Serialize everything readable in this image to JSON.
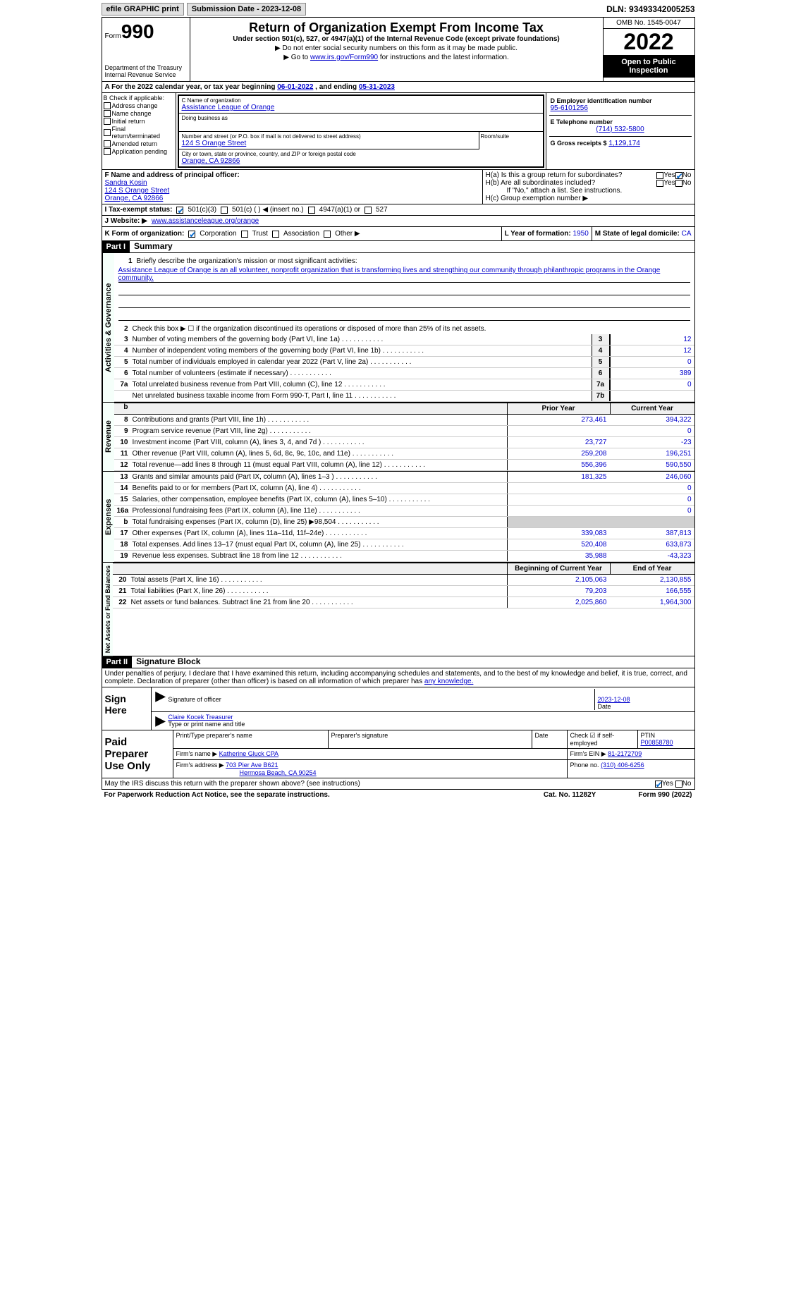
{
  "top": {
    "efile": "efile GRAPHIC print",
    "submission": "Submission Date - 2023-12-08",
    "dln": "DLN: 93493342005253"
  },
  "header": {
    "form": "Form",
    "form_num": "990",
    "dept": "Department of the Treasury",
    "irs": "Internal Revenue Service",
    "title": "Return of Organization Exempt From Income Tax",
    "sub": "Under section 501(c), 527, or 4947(a)(1) of the Internal Revenue Code (except private foundations)",
    "note1": "▶ Do not enter social security numbers on this form as it may be made public.",
    "note2_pre": "▶ Go to ",
    "note2_link": "www.irs.gov/Form990",
    "note2_post": " for instructions and the latest information.",
    "omb": "OMB No. 1545-0047",
    "year": "2022",
    "inspect": "Open to Public Inspection"
  },
  "row_a": {
    "text_pre": "A For the 2022 calendar year, or tax year beginning ",
    "begin": "06-01-2022",
    "mid": "   , and ending ",
    "end": "05-31-2023"
  },
  "col_b": {
    "hdr": "B Check if applicable:",
    "items": [
      "Address change",
      "Name change",
      "Initial return",
      "Final return/terminated",
      "Amended return",
      "Application pending"
    ]
  },
  "col_c": {
    "name_lbl": "C Name of organization",
    "name": "Assistance League of Orange",
    "dba_lbl": "Doing business as",
    "dba": "",
    "addr_lbl": "Number and street (or P.O. box if mail is not delivered to street address)",
    "room_lbl": "Room/suite",
    "addr": "124 S Orange Street",
    "city_lbl": "City or town, state or province, country, and ZIP or foreign postal code",
    "city": "Orange, CA  92866"
  },
  "col_d": {
    "ein_lbl": "D Employer identification number",
    "ein": "95-6101256",
    "tel_lbl": "E Telephone number",
    "tel": "(714) 532-5800",
    "gross_lbl": "G Gross receipts $",
    "gross": "1,129,174"
  },
  "section_f": {
    "f_lbl": "F Name and address of principal officer:",
    "f_name": "Sandra Kosin",
    "f_addr1": "124 S Orange Street",
    "f_addr2": "Orange, CA  92866",
    "ha": "H(a)  Is this a group return for subordinates?",
    "hb": "H(b)  Are all subordinates included?",
    "hb_note": "If \"No,\" attach a list. See instructions.",
    "hc": "H(c)  Group exemption number ▶"
  },
  "section_i": {
    "lbl": "I    Tax-exempt status:",
    "opts": [
      "501(c)(3)",
      "501(c) (  ) ◀ (insert no.)",
      "4947(a)(1) or",
      "527"
    ]
  },
  "section_j": {
    "lbl": "J   Website: ▶ ",
    "val": " www.assistanceleague.org/orange"
  },
  "section_k": {
    "k": "K Form of organization:",
    "opts": [
      "Corporation",
      "Trust",
      "Association",
      "Other ▶"
    ],
    "l_lbl": "L Year of formation:",
    "l_val": "1950",
    "m_lbl": "M State of legal domicile:",
    "m_val": "CA"
  },
  "part1": {
    "hdr": "Part I",
    "title": "Summary",
    "line1_lbl": "Briefly describe the organization's mission or most significant activities:",
    "line1_val": "Assistance League of Orange is an all volunteer, nonprofit organization that is transforming lives and strengthing our community through philanthropic programs in the Orange community.",
    "line2": "Check this box ▶ ☐  if the organization discontinued its operations or disposed of more than 25% of its net assets.",
    "lines_gov": [
      {
        "n": "3",
        "d": "Number of voting members of the governing body (Part VI, line 1a)",
        "b": "3",
        "v": "12"
      },
      {
        "n": "4",
        "d": "Number of independent voting members of the governing body (Part VI, line 1b)",
        "b": "4",
        "v": "12"
      },
      {
        "n": "5",
        "d": "Total number of individuals employed in calendar year 2022 (Part V, line 2a)",
        "b": "5",
        "v": "0"
      },
      {
        "n": "6",
        "d": "Total number of volunteers (estimate if necessary)",
        "b": "6",
        "v": "389"
      },
      {
        "n": "7a",
        "d": "Total unrelated business revenue from Part VIII, column (C), line 12",
        "b": "7a",
        "v": "0"
      },
      {
        "n": "",
        "d": "Net unrelated business taxable income from Form 990-T, Part I, line 11",
        "b": "7b",
        "v": ""
      }
    ],
    "col_hdr_b": "b",
    "col_hdr1": "Prior Year",
    "col_hdr2": "Current Year",
    "lines_rev": [
      {
        "n": "8",
        "d": "Contributions and grants (Part VIII, line 1h)",
        "p": "273,461",
        "c": "394,322"
      },
      {
        "n": "9",
        "d": "Program service revenue (Part VIII, line 2g)",
        "p": "",
        "c": "0"
      },
      {
        "n": "10",
        "d": "Investment income (Part VIII, column (A), lines 3, 4, and 7d )",
        "p": "23,727",
        "c": "-23"
      },
      {
        "n": "11",
        "d": "Other revenue (Part VIII, column (A), lines 5, 6d, 8c, 9c, 10c, and 11e)",
        "p": "259,208",
        "c": "196,251"
      },
      {
        "n": "12",
        "d": "Total revenue—add lines 8 through 11 (must equal Part VIII, column (A), line 12)",
        "p": "556,396",
        "c": "590,550"
      }
    ],
    "lines_exp": [
      {
        "n": "13",
        "d": "Grants and similar amounts paid (Part IX, column (A), lines 1–3 )",
        "p": "181,325",
        "c": "246,060"
      },
      {
        "n": "14",
        "d": "Benefits paid to or for members (Part IX, column (A), line 4)",
        "p": "",
        "c": "0"
      },
      {
        "n": "15",
        "d": "Salaries, other compensation, employee benefits (Part IX, column (A), lines 5–10)",
        "p": "",
        "c": "0"
      },
      {
        "n": "16a",
        "d": "Professional fundraising fees (Part IX, column (A), line 11e)",
        "p": "",
        "c": "0"
      },
      {
        "n": "b",
        "d": "Total fundraising expenses (Part IX, column (D), line 25) ▶98,504",
        "p": "shade",
        "c": "shade"
      },
      {
        "n": "17",
        "d": "Other expenses (Part IX, column (A), lines 11a–11d, 11f–24e)",
        "p": "339,083",
        "c": "387,813"
      },
      {
        "n": "18",
        "d": "Total expenses. Add lines 13–17 (must equal Part IX, column (A), line 25)",
        "p": "520,408",
        "c": "633,873"
      },
      {
        "n": "19",
        "d": "Revenue less expenses. Subtract line 18 from line 12",
        "p": "35,988",
        "c": "-43,323"
      }
    ],
    "col_hdr3": "Beginning of Current Year",
    "col_hdr4": "End of Year",
    "lines_net": [
      {
        "n": "20",
        "d": "Total assets (Part X, line 16)",
        "p": "2,105,063",
        "c": "2,130,855"
      },
      {
        "n": "21",
        "d": "Total liabilities (Part X, line 26)",
        "p": "79,203",
        "c": "166,555"
      },
      {
        "n": "22",
        "d": "Net assets or fund balances. Subtract line 21 from line 20",
        "p": "2,025,860",
        "c": "1,964,300"
      }
    ],
    "side_gov": "Activities & Governance",
    "side_rev": "Revenue",
    "side_exp": "Expenses",
    "side_net": "Net Assets or Fund Balances"
  },
  "part2": {
    "hdr": "Part II",
    "title": "Signature Block",
    "decl": "Under penalties of perjury, I declare that I have examined this return, including accompanying schedules and statements, and to the best of my knowledge and belief, it is true, correct, and complete. Declaration of preparer (other than officer) is based on all information of which preparer has ",
    "decl_u": "any knowledge.",
    "sign_here": "Sign Here",
    "sig_officer": "Signature of officer",
    "date": "Date",
    "date_val": "2023-12-08",
    "name_title": "Claire Kocek  Treasurer",
    "name_lbl": "Type or print name and title",
    "prep_hdr": "Paid Preparer Use Only",
    "prep_name_lbl": "Print/Type preparer's name",
    "prep_sig_lbl": "Preparer's signature",
    "prep_date_lbl": "Date",
    "prep_self": "Check ☑ if self-employed",
    "ptin_lbl": "PTIN",
    "ptin": "P00858780",
    "firm_name_lbl": "Firm's name    ▶",
    "firm_name": "Katherine Gluck CPA",
    "firm_ein_lbl": "Firm's EIN ▶",
    "firm_ein": "81-2172709",
    "firm_addr_lbl": "Firm's address ▶",
    "firm_addr1": "703 Pier Ave B621",
    "firm_addr2": "Hermosa Beach, CA  90254",
    "phone_lbl": "Phone no.",
    "phone": "(310) 406-6256",
    "may_irs": "May the IRS discuss this return with the preparer shown above? (see instructions)",
    "yes": "Yes",
    "no": "No"
  },
  "footer": {
    "pra": "For Paperwork Reduction Act Notice, see the separate instructions.",
    "cat": "Cat. No. 11282Y",
    "form": "Form 990 (2022)"
  }
}
